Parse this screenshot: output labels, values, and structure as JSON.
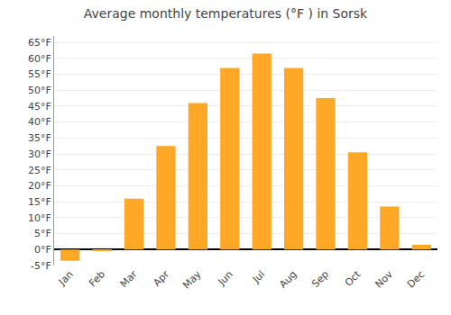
{
  "chart_data": {
    "type": "bar",
    "title": "Average monthly temperatures (°F ) in Sorsk",
    "categories": [
      "Jan",
      "Feb",
      "Mar",
      "Apr",
      "May",
      "Jun",
      "Jul",
      "Aug",
      "Sep",
      "Oct",
      "Nov",
      "Dec"
    ],
    "values": [
      -3.5,
      -0.5,
      16,
      32.5,
      46,
      57,
      61.5,
      57,
      47.5,
      30.5,
      13.5,
      1.5
    ],
    "color": "#FFA726",
    "ylim": [
      -5,
      67
    ],
    "yticks": [
      {
        "value": -5,
        "label": "-5°F"
      },
      {
        "value": 0,
        "label": "0°F"
      },
      {
        "value": 5,
        "label": "5°F"
      },
      {
        "value": 10,
        "label": "10°F"
      },
      {
        "value": 15,
        "label": "15°F"
      },
      {
        "value": 20,
        "label": "20°F"
      },
      {
        "value": 25,
        "label": "25°F"
      },
      {
        "value": 30,
        "label": "30°F"
      },
      {
        "value": 35,
        "label": "35°F"
      },
      {
        "value": 40,
        "label": "40°F"
      },
      {
        "value": 45,
        "label": "45°F"
      },
      {
        "value": 50,
        "label": "50°F"
      },
      {
        "value": 55,
        "label": "55°F"
      },
      {
        "value": 60,
        "label": "60°F"
      },
      {
        "value": 65,
        "label": "65°F"
      }
    ],
    "grid": true
  }
}
